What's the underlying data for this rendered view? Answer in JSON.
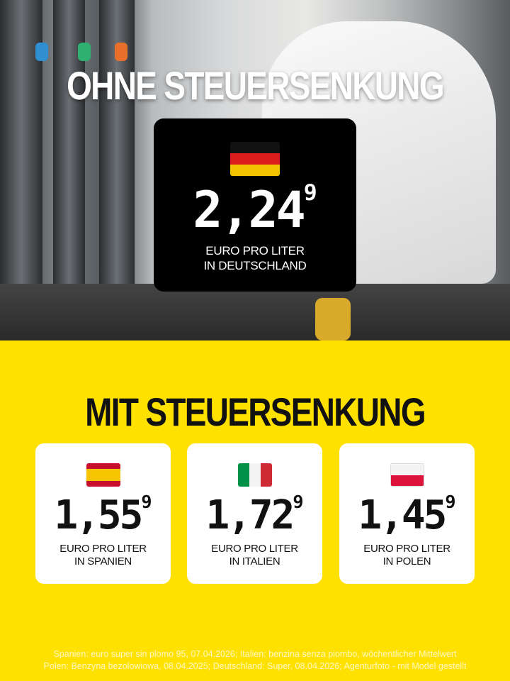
{
  "header": {
    "title": "OHNE STEUERSENKUNG"
  },
  "germany": {
    "flag_icon": "germany-flag",
    "price": "2,24",
    "price_sup": "9",
    "line1": "EURO PRO LITER",
    "line2": "IN DEUTSCHLAND"
  },
  "section": {
    "title": "MIT STEUERSENKUNG"
  },
  "countries": [
    {
      "flag_icon": "spain-flag",
      "price": "1,55",
      "price_sup": "9",
      "line1": "EURO PRO LITER",
      "line2": "IN SPANIEN"
    },
    {
      "flag_icon": "italy-flag",
      "price": "1,72",
      "price_sup": "9",
      "line1": "EURO PRO LITER",
      "line2": "IN ITALIEN"
    },
    {
      "flag_icon": "poland-flag",
      "price": "1,45",
      "price_sup": "9",
      "line1": "EURO PRO LITER",
      "line2": "IN POLEN"
    }
  ],
  "footer": {
    "line1": "Spanien: euro super sin plomo 95, 07.04.2026; Italien: benzina senza piombo, wöchentlicher Mittelwert",
    "line2": "Polen: Benzyna bezolowiowa, 08.04.2025; Deutschland: Super, 08.04.2026; Agenturfoto - mit Model gestellt"
  },
  "colors": {
    "background": "#FFE100",
    "card_dark": "#000000",
    "card_light": "#FFFFFF"
  }
}
